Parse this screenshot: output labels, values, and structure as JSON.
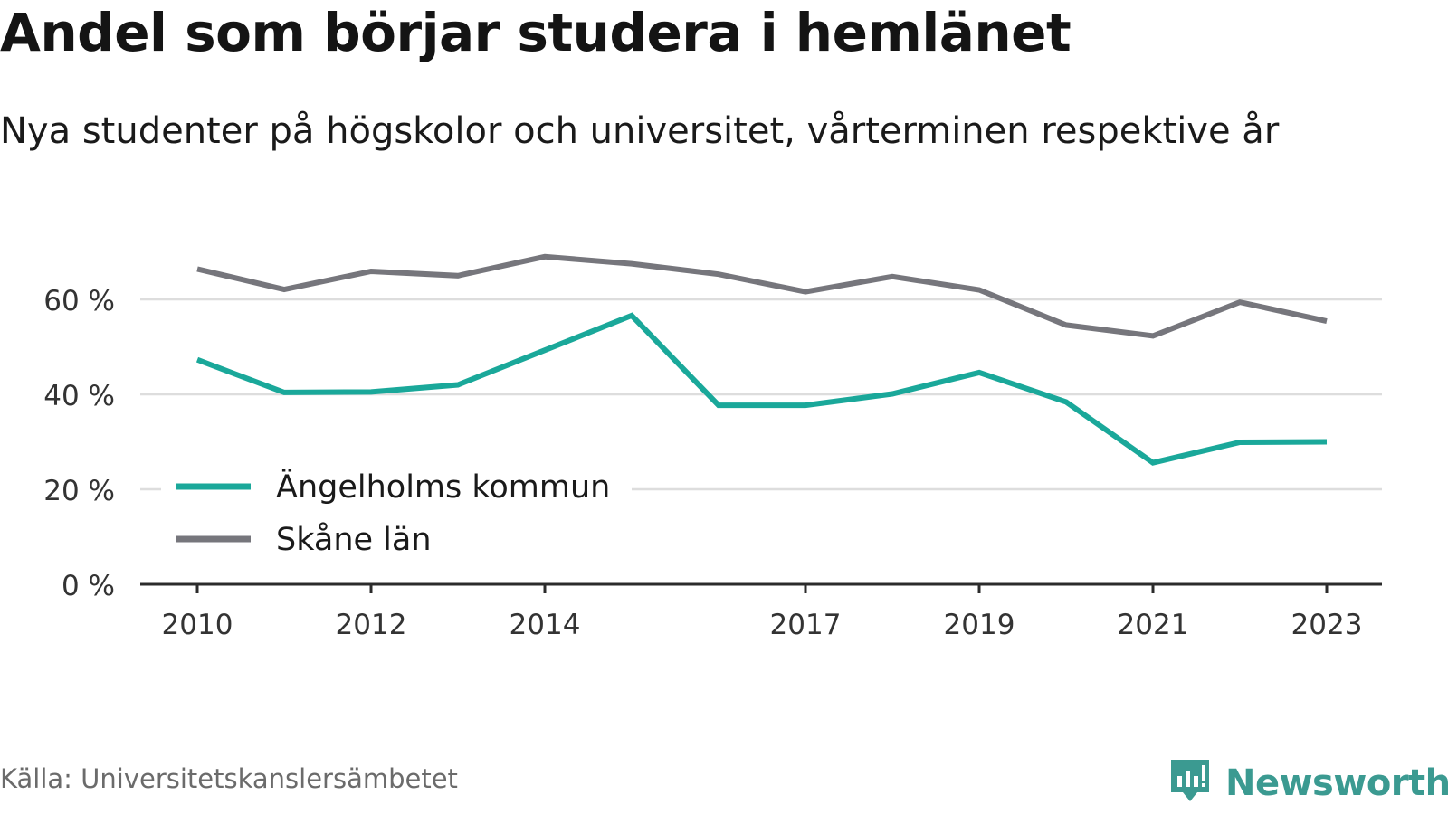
{
  "title": "Andel som börjar studera i hemlänet",
  "subtitle": "Nya studenter på högskolor och universitet, vårterminen respektive år",
  "source": "Källa: Universitetskanslersämbetet",
  "brand": {
    "name": "Newsworthy",
    "icon": "newsworthy-logo-icon",
    "color": "#3b9a91"
  },
  "chart_data": {
    "type": "line",
    "title": "Andel som börjar studera i hemlänet",
    "subtitle": "Nya studenter på högskolor och universitet, vårterminen respektive år",
    "xlabel": "",
    "ylabel": "",
    "x": [
      2010,
      2011,
      2012,
      2013,
      2014,
      2015,
      2016,
      2017,
      2018,
      2019,
      2020,
      2021,
      2022,
      2023
    ],
    "x_ticks": [
      "2010",
      "2012",
      "2014",
      "2017",
      "2019",
      "2021",
      "2023"
    ],
    "y_ticks": [
      {
        "value": 0,
        "label": "0 %"
      },
      {
        "value": 20,
        "label": "20 %"
      },
      {
        "value": 40,
        "label": "40 %"
      },
      {
        "value": 60,
        "label": "60 %"
      }
    ],
    "ylim": [
      0,
      72
    ],
    "grid": "horizontal",
    "legend_position": "bottom-left",
    "series": [
      {
        "name": "Ängelholms kommun",
        "color": "#1aa89a",
        "values": [
          47.3,
          40.4,
          40.5,
          42.0,
          49.3,
          56.6,
          37.7,
          37.7,
          40.1,
          44.6,
          38.4,
          25.6,
          29.9,
          30.0
        ]
      },
      {
        "name": "Skåne län",
        "color": "#76767c",
        "values": [
          66.4,
          62.1,
          65.9,
          65.0,
          69.0,
          67.5,
          65.3,
          61.6,
          64.8,
          62.0,
          54.6,
          52.3,
          59.4,
          55.4
        ]
      }
    ]
  }
}
